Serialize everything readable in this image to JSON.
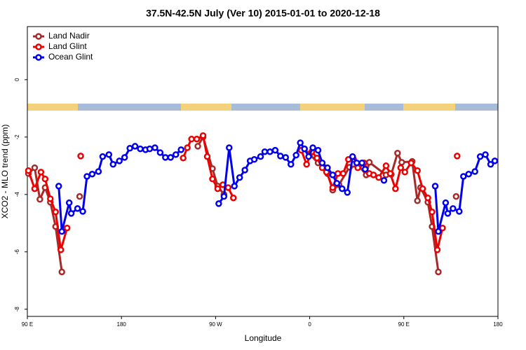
{
  "chart_data": {
    "type": "line",
    "title": "37.5N-42.5N July (Ver 10)   2015-01-01 to 2020-12-18",
    "x_label": "Longitude",
    "y_label": "XCO2 - MLO trend (ppm)",
    "xlim": [
      90,
      540
    ],
    "ylim": [
      -8.25,
      1.85
    ],
    "xticks": [
      {
        "value": 90,
        "label": "90 E"
      },
      180,
      {
        "value": 270,
        "label": "90 W"
      },
      {
        "value": 360,
        "label": "0"
      },
      {
        "value": 450,
        "label": "90 E"
      },
      {
        "value": 540,
        "label": "180"
      }
    ],
    "yticks": [
      -8,
      -6,
      -4,
      -2,
      0
    ],
    "legend": "upper-left",
    "series": [
      {
        "name": "Land Nadir",
        "color": "#a52a2a",
        "x": [
          91,
          97,
          102,
          107,
          112,
          117,
          123,
          null,
          140,
          null,
          253,
          258,
          267,
          272,
          278,
          null,
          355,
          360,
          368,
          377,
          382,
          388,
          398,
          407,
          414,
          417,
          433,
          438,
          444,
          448,
          458,
          463,
          466,
          473,
          477,
          483,
          null,
          500
        ],
        "values": [
          -3.27,
          -3.07,
          -4.17,
          -3.76,
          -4.27,
          -5.12,
          -6.7,
          null,
          -4.07,
          null,
          -2.32,
          -2.0,
          -3.1,
          -3.71,
          -4.0,
          null,
          -2.41,
          -2.6,
          -2.9,
          -3.27,
          -3.85,
          -3.66,
          -3.05,
          -3.0,
          -3.32,
          -2.88,
          -3.32,
          -3.3,
          -2.56,
          -2.88,
          -2.85,
          -4.22,
          -3.76,
          -4.27,
          -5.12,
          -6.7,
          null,
          -4.07
        ]
      },
      {
        "name": "Land Glint",
        "color": "#ee0000",
        "x": [
          91,
          97,
          103,
          107,
          112,
          117,
          122,
          128,
          null,
          141,
          null,
          239,
          243,
          247,
          252,
          258,
          262,
          267,
          272,
          277,
          282,
          287,
          null,
          352,
          357,
          362,
          367,
          372,
          376,
          382,
          387,
          392,
          397,
          402,
          406,
          412,
          417,
          421,
          426,
          433,
          437,
          442,
          447,
          451,
          457,
          463,
          468,
          473,
          477,
          482,
          487,
          null,
          501
        ],
        "values": [
          -3.17,
          -3.8,
          -3.22,
          -3.46,
          -4.15,
          -4.61,
          -5.93,
          -5.17,
          null,
          -2.66,
          null,
          -2.73,
          -2.37,
          -2.07,
          -2.07,
          -1.95,
          -2.68,
          -3.46,
          -3.8,
          -3.66,
          -3.76,
          -4.12,
          null,
          -2.46,
          -2.95,
          -2.51,
          -2.73,
          -3.07,
          -3.22,
          -3.76,
          -3.27,
          -3.27,
          -2.78,
          -2.78,
          -3.07,
          -2.9,
          -3.27,
          -3.32,
          -3.41,
          -3.0,
          -3.27,
          -3.8,
          -3.07,
          -3.22,
          -2.9,
          -3.17,
          -3.8,
          -4.12,
          -4.61,
          -5.93,
          -5.17,
          null,
          -2.66
        ]
      },
      {
        "name": "Ocean Glint",
        "color": "#0000ee",
        "x": [
          120,
          123,
          130,
          132,
          138,
          143,
          147,
          152,
          158,
          162,
          168,
          172,
          178,
          183,
          188,
          193,
          198,
          203,
          207,
          212,
          217,
          222,
          227,
          232,
          237,
          null,
          273,
          278,
          283,
          288,
          293,
          298,
          303,
          307,
          313,
          317,
          322,
          327,
          332,
          337,
          342,
          347,
          351,
          355,
          359,
          363,
          368,
          372,
          377,
          382,
          386,
          391,
          396,
          401,
          405,
          410,
          413,
          null,
          431,
          null,
          480,
          483,
          490,
          492,
          497,
          503,
          507,
          512,
          518,
          523,
          528,
          533,
          537
        ],
        "values": [
          -3.71,
          -5.29,
          -4.29,
          -4.66,
          -4.49,
          -4.59,
          -3.37,
          -3.29,
          -3.2,
          -2.68,
          -2.61,
          -2.95,
          -2.83,
          -2.71,
          -2.39,
          -2.32,
          -2.41,
          -2.44,
          -2.41,
          -2.37,
          -2.54,
          -2.71,
          -2.71,
          -2.61,
          -2.44,
          null,
          -4.32,
          -4.07,
          -2.37,
          -3.71,
          -3.41,
          -3.15,
          -2.83,
          -2.78,
          -2.68,
          -2.51,
          -2.51,
          -2.46,
          -2.66,
          -2.71,
          -2.95,
          -2.63,
          -2.2,
          -2.41,
          -2.68,
          -2.37,
          -2.46,
          -2.9,
          -3.07,
          -3.32,
          -3.61,
          -3.8,
          -3.93,
          -2.68,
          -2.9,
          -2.9,
          -3.12,
          null,
          -3.51,
          null,
          -3.71,
          -5.29,
          -4.29,
          -4.66,
          -4.49,
          -4.59,
          -3.37,
          -3.29,
          -3.2,
          -2.68,
          -2.61,
          -2.95,
          -2.83
        ]
      }
    ]
  }
}
